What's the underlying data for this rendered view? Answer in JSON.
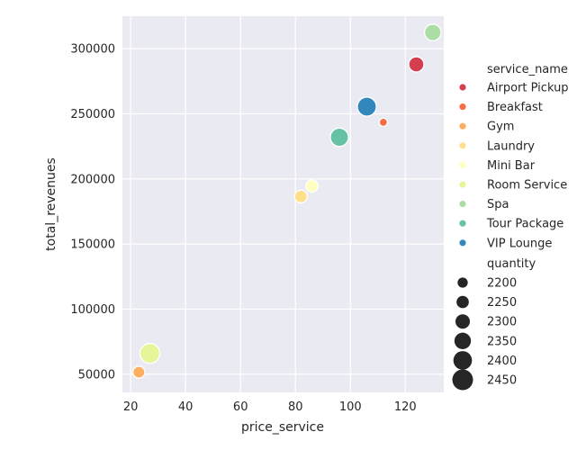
{
  "chart_data": {
    "type": "scatter",
    "title": "",
    "xlabel": "price_service",
    "ylabel": "total_revenues",
    "xlim": [
      17,
      134
    ],
    "ylim": [
      36000,
      325000
    ],
    "grid": true,
    "xticks": [
      20,
      40,
      60,
      80,
      100,
      120
    ],
    "yticks": [
      50000,
      100000,
      150000,
      200000,
      250000,
      300000
    ],
    "hue_title": "service_name",
    "size_title": "quantity",
    "size_legend": [
      2200,
      2250,
      2300,
      2350,
      2400,
      2450
    ],
    "legend_position": "right",
    "series": [
      {
        "name": "Airport Pickup",
        "color": "#d53e4f",
        "x": 124,
        "y": 288000,
        "quantity": 2320
      },
      {
        "name": "Breakfast",
        "color": "#f46d43",
        "x": 112,
        "y": 243500,
        "quantity": 2150
      },
      {
        "name": "Gym",
        "color": "#fdae61",
        "x": 23,
        "y": 51500,
        "quantity": 2240
      },
      {
        "name": "Laundry",
        "color": "#fee08b",
        "x": 82,
        "y": 186500,
        "quantity": 2260
      },
      {
        "name": "Mini Bar",
        "color": "#ffffbf",
        "x": 86,
        "y": 194500,
        "quantity": 2250
      },
      {
        "name": "Room Service",
        "color": "#e6f598",
        "x": 27,
        "y": 66000,
        "quantity": 2430
      },
      {
        "name": "Spa",
        "color": "#abdda4",
        "x": 130,
        "y": 312500,
        "quantity": 2350
      },
      {
        "name": "Tour Package",
        "color": "#66c2a5",
        "x": 96,
        "y": 232000,
        "quantity": 2390
      },
      {
        "name": "VIP Lounge",
        "color": "#3288bd",
        "x": 106,
        "y": 255500,
        "quantity": 2410
      }
    ]
  }
}
